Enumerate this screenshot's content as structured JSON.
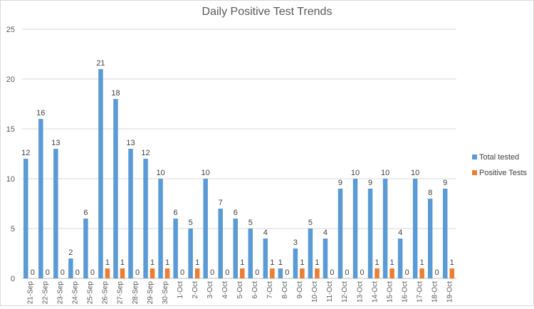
{
  "chart_data": {
    "type": "bar",
    "title": "Daily Positive Test Trends",
    "xlabel": "",
    "ylabel": "",
    "ylim": [
      0,
      25
    ],
    "yticks": [
      0,
      5,
      10,
      15,
      20,
      25
    ],
    "grid": true,
    "legend_position": "right",
    "categories": [
      "21-Sep",
      "22-Sep",
      "23-Sep",
      "24-Sep",
      "25-Sep",
      "26-Sep",
      "27-Sep",
      "28-Sep",
      "29-Sep",
      "30-Sep",
      "1-Oct",
      "2-Oct",
      "3-Oct",
      "4-Oct",
      "5-Oct",
      "6-Oct",
      "7-Oct",
      "8-Oct",
      "9-Oct",
      "10-Oct",
      "11-Oct",
      "12-Oct",
      "13-Oct",
      "14-Oct",
      "15-Oct",
      "16-Oct",
      "17-Oct",
      "18-Oct",
      "19-Oct"
    ],
    "series": [
      {
        "name": "Total tested",
        "color": "#5b9bd5",
        "values": [
          12,
          16,
          13,
          2,
          6,
          21,
          18,
          13,
          12,
          10,
          6,
          5,
          10,
          7,
          6,
          5,
          4,
          1,
          3,
          5,
          4,
          9,
          10,
          9,
          10,
          4,
          10,
          8,
          9
        ]
      },
      {
        "name": "Positive Tests",
        "color": "#ed7d31",
        "values": [
          0,
          0,
          0,
          0,
          0,
          1,
          1,
          0,
          1,
          1,
          0,
          1,
          0,
          0,
          1,
          0,
          1,
          0,
          1,
          1,
          0,
          0,
          0,
          1,
          1,
          0,
          1,
          0,
          1
        ]
      }
    ]
  }
}
